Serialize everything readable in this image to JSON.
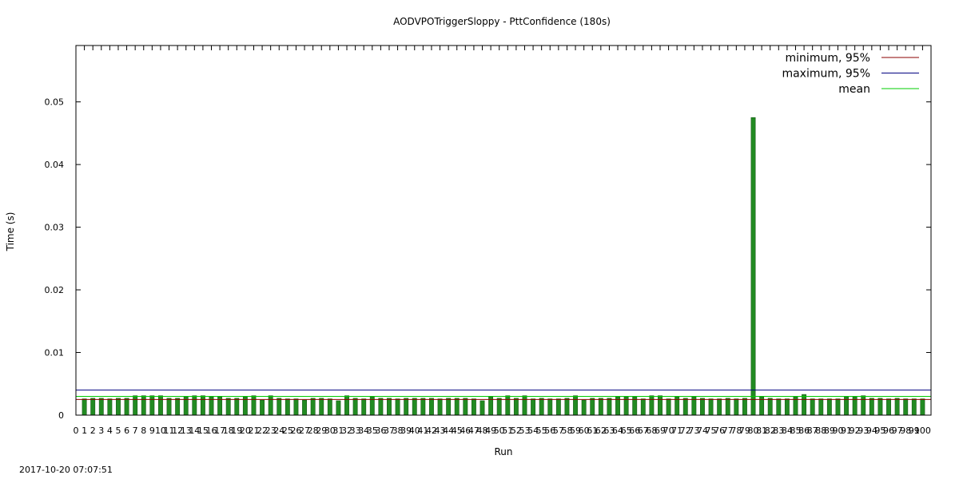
{
  "chart_data": {
    "type": "bar",
    "title": "AODVPOTriggerSloppy - PttConfidence (180s)",
    "xlabel": "Run",
    "ylabel": "Time (s)",
    "timestamp": "2017-10-20 07:07:51",
    "xlim": [
      0,
      101
    ],
    "ylim": [
      0,
      0.059
    ],
    "y_ticks": [
      "0",
      "0.01",
      "0.02",
      "0.03",
      "0.04",
      "0.05"
    ],
    "y_tick_values": [
      0,
      0.01,
      0.02,
      0.03,
      0.04,
      0.05
    ],
    "x_ticks": [
      "0",
      "1",
      "2",
      "3",
      "4",
      "5",
      "6",
      "7",
      "8",
      "9",
      "10",
      "11",
      "12",
      "13",
      "14",
      "15",
      "16",
      "17",
      "18",
      "19",
      "20",
      "21",
      "22",
      "23",
      "24",
      "25",
      "26",
      "27",
      "28",
      "29",
      "30",
      "31",
      "32",
      "33",
      "34",
      "35",
      "36",
      "37",
      "38",
      "39",
      "40",
      "41",
      "42",
      "43",
      "44",
      "45",
      "46",
      "47",
      "48",
      "49",
      "50",
      "51",
      "52",
      "53",
      "54",
      "55",
      "56",
      "57",
      "58",
      "59",
      "60",
      "61",
      "62",
      "63",
      "64",
      "65",
      "66",
      "67",
      "68",
      "69",
      "70",
      "71",
      "72",
      "73",
      "74",
      "75",
      "76",
      "77",
      "78",
      "79",
      "80",
      "81",
      "82",
      "83",
      "84",
      "85",
      "86",
      "87",
      "88",
      "89",
      "90",
      "91",
      "92",
      "93",
      "94",
      "95",
      "96",
      "97",
      "98",
      "99",
      "100"
    ],
    "x": [
      1,
      2,
      3,
      4,
      5,
      6,
      7,
      8,
      9,
      10,
      11,
      12,
      13,
      14,
      15,
      16,
      17,
      18,
      19,
      20,
      21,
      22,
      23,
      24,
      25,
      26,
      27,
      28,
      29,
      30,
      31,
      32,
      33,
      34,
      35,
      36,
      37,
      38,
      39,
      40,
      41,
      42,
      43,
      44,
      45,
      46,
      47,
      48,
      49,
      50,
      51,
      52,
      53,
      54,
      55,
      56,
      57,
      58,
      59,
      60,
      61,
      62,
      63,
      64,
      65,
      66,
      67,
      68,
      69,
      70,
      71,
      72,
      73,
      74,
      75,
      76,
      77,
      78,
      79,
      80,
      81,
      82,
      83,
      84,
      85,
      86,
      87,
      88,
      89,
      90,
      91,
      92,
      93,
      94,
      95,
      96,
      97,
      98,
      99,
      100
    ],
    "values": [
      0.0026,
      0.0027,
      0.0027,
      0.0026,
      0.0027,
      0.0027,
      0.0031,
      0.0031,
      0.0031,
      0.0031,
      0.0027,
      0.0027,
      0.0029,
      0.0031,
      0.0031,
      0.0029,
      0.0029,
      0.0027,
      0.0027,
      0.0029,
      0.0031,
      0.0024,
      0.0031,
      0.0027,
      0.0026,
      0.0026,
      0.0024,
      0.0027,
      0.0027,
      0.0026,
      0.0023,
      0.0031,
      0.0027,
      0.0026,
      0.0029,
      0.0027,
      0.0027,
      0.0026,
      0.0027,
      0.0027,
      0.0027,
      0.0027,
      0.0026,
      0.0027,
      0.0027,
      0.0027,
      0.0026,
      0.0023,
      0.0029,
      0.0027,
      0.0031,
      0.0027,
      0.0031,
      0.0026,
      0.0027,
      0.0026,
      0.0026,
      0.0027,
      0.0031,
      0.0024,
      0.0027,
      0.0027,
      0.0027,
      0.0029,
      0.0029,
      0.0029,
      0.0026,
      0.0031,
      0.0031,
      0.0026,
      0.0029,
      0.0027,
      0.0029,
      0.0027,
      0.0026,
      0.0026,
      0.0027,
      0.0026,
      0.0027,
      0.0475,
      0.0029,
      0.0027,
      0.0026,
      0.0026,
      0.0029,
      0.0033,
      0.0026,
      0.0026,
      0.0026,
      0.0026,
      0.0029,
      0.0029,
      0.0031,
      0.0027,
      0.0027,
      0.0026,
      0.0027,
      0.0026,
      0.0026,
      0.0026
    ],
    "bar_color": "#228b22",
    "bar_edge_color": "#1a5c1a",
    "grid": false,
    "legend_position": "top-right",
    "lines": [
      {
        "name": "minimum, 95%",
        "value": 0.0025,
        "color": "#8b0000"
      },
      {
        "name": "maximum, 95%",
        "value": 0.004,
        "color": "#000080"
      },
      {
        "name": "mean",
        "value": 0.003,
        "color": "#00cc00"
      }
    ]
  }
}
